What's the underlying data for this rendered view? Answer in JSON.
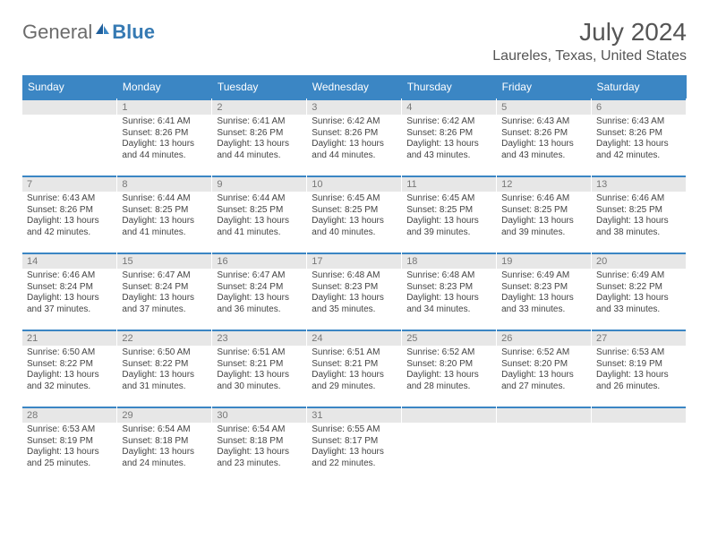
{
  "logo": {
    "part1": "General",
    "part2": "Blue"
  },
  "title": "July 2024",
  "location": "Laureles, Texas, United States",
  "colors": {
    "header_bg": "#3b86c4",
    "header_text": "#ffffff",
    "band_bg": "#e7e7e7",
    "band_border": "#3b86c4",
    "text": "#444444",
    "logo_gray": "#6b6b6b",
    "logo_blue": "#367ab3"
  },
  "weekdays": [
    "Sunday",
    "Monday",
    "Tuesday",
    "Wednesday",
    "Thursday",
    "Friday",
    "Saturday"
  ],
  "weeks": [
    [
      {
        "num": "",
        "sunrise": "",
        "sunset": "",
        "daylight1": "",
        "daylight2": ""
      },
      {
        "num": "1",
        "sunrise": "Sunrise: 6:41 AM",
        "sunset": "Sunset: 8:26 PM",
        "daylight1": "Daylight: 13 hours",
        "daylight2": "and 44 minutes."
      },
      {
        "num": "2",
        "sunrise": "Sunrise: 6:41 AM",
        "sunset": "Sunset: 8:26 PM",
        "daylight1": "Daylight: 13 hours",
        "daylight2": "and 44 minutes."
      },
      {
        "num": "3",
        "sunrise": "Sunrise: 6:42 AM",
        "sunset": "Sunset: 8:26 PM",
        "daylight1": "Daylight: 13 hours",
        "daylight2": "and 44 minutes."
      },
      {
        "num": "4",
        "sunrise": "Sunrise: 6:42 AM",
        "sunset": "Sunset: 8:26 PM",
        "daylight1": "Daylight: 13 hours",
        "daylight2": "and 43 minutes."
      },
      {
        "num": "5",
        "sunrise": "Sunrise: 6:43 AM",
        "sunset": "Sunset: 8:26 PM",
        "daylight1": "Daylight: 13 hours",
        "daylight2": "and 43 minutes."
      },
      {
        "num": "6",
        "sunrise": "Sunrise: 6:43 AM",
        "sunset": "Sunset: 8:26 PM",
        "daylight1": "Daylight: 13 hours",
        "daylight2": "and 42 minutes."
      }
    ],
    [
      {
        "num": "7",
        "sunrise": "Sunrise: 6:43 AM",
        "sunset": "Sunset: 8:26 PM",
        "daylight1": "Daylight: 13 hours",
        "daylight2": "and 42 minutes."
      },
      {
        "num": "8",
        "sunrise": "Sunrise: 6:44 AM",
        "sunset": "Sunset: 8:25 PM",
        "daylight1": "Daylight: 13 hours",
        "daylight2": "and 41 minutes."
      },
      {
        "num": "9",
        "sunrise": "Sunrise: 6:44 AM",
        "sunset": "Sunset: 8:25 PM",
        "daylight1": "Daylight: 13 hours",
        "daylight2": "and 41 minutes."
      },
      {
        "num": "10",
        "sunrise": "Sunrise: 6:45 AM",
        "sunset": "Sunset: 8:25 PM",
        "daylight1": "Daylight: 13 hours",
        "daylight2": "and 40 minutes."
      },
      {
        "num": "11",
        "sunrise": "Sunrise: 6:45 AM",
        "sunset": "Sunset: 8:25 PM",
        "daylight1": "Daylight: 13 hours",
        "daylight2": "and 39 minutes."
      },
      {
        "num": "12",
        "sunrise": "Sunrise: 6:46 AM",
        "sunset": "Sunset: 8:25 PM",
        "daylight1": "Daylight: 13 hours",
        "daylight2": "and 39 minutes."
      },
      {
        "num": "13",
        "sunrise": "Sunrise: 6:46 AM",
        "sunset": "Sunset: 8:25 PM",
        "daylight1": "Daylight: 13 hours",
        "daylight2": "and 38 minutes."
      }
    ],
    [
      {
        "num": "14",
        "sunrise": "Sunrise: 6:46 AM",
        "sunset": "Sunset: 8:24 PM",
        "daylight1": "Daylight: 13 hours",
        "daylight2": "and 37 minutes."
      },
      {
        "num": "15",
        "sunrise": "Sunrise: 6:47 AM",
        "sunset": "Sunset: 8:24 PM",
        "daylight1": "Daylight: 13 hours",
        "daylight2": "and 37 minutes."
      },
      {
        "num": "16",
        "sunrise": "Sunrise: 6:47 AM",
        "sunset": "Sunset: 8:24 PM",
        "daylight1": "Daylight: 13 hours",
        "daylight2": "and 36 minutes."
      },
      {
        "num": "17",
        "sunrise": "Sunrise: 6:48 AM",
        "sunset": "Sunset: 8:23 PM",
        "daylight1": "Daylight: 13 hours",
        "daylight2": "and 35 minutes."
      },
      {
        "num": "18",
        "sunrise": "Sunrise: 6:48 AM",
        "sunset": "Sunset: 8:23 PM",
        "daylight1": "Daylight: 13 hours",
        "daylight2": "and 34 minutes."
      },
      {
        "num": "19",
        "sunrise": "Sunrise: 6:49 AM",
        "sunset": "Sunset: 8:23 PM",
        "daylight1": "Daylight: 13 hours",
        "daylight2": "and 33 minutes."
      },
      {
        "num": "20",
        "sunrise": "Sunrise: 6:49 AM",
        "sunset": "Sunset: 8:22 PM",
        "daylight1": "Daylight: 13 hours",
        "daylight2": "and 33 minutes."
      }
    ],
    [
      {
        "num": "21",
        "sunrise": "Sunrise: 6:50 AM",
        "sunset": "Sunset: 8:22 PM",
        "daylight1": "Daylight: 13 hours",
        "daylight2": "and 32 minutes."
      },
      {
        "num": "22",
        "sunrise": "Sunrise: 6:50 AM",
        "sunset": "Sunset: 8:22 PM",
        "daylight1": "Daylight: 13 hours",
        "daylight2": "and 31 minutes."
      },
      {
        "num": "23",
        "sunrise": "Sunrise: 6:51 AM",
        "sunset": "Sunset: 8:21 PM",
        "daylight1": "Daylight: 13 hours",
        "daylight2": "and 30 minutes."
      },
      {
        "num": "24",
        "sunrise": "Sunrise: 6:51 AM",
        "sunset": "Sunset: 8:21 PM",
        "daylight1": "Daylight: 13 hours",
        "daylight2": "and 29 minutes."
      },
      {
        "num": "25",
        "sunrise": "Sunrise: 6:52 AM",
        "sunset": "Sunset: 8:20 PM",
        "daylight1": "Daylight: 13 hours",
        "daylight2": "and 28 minutes."
      },
      {
        "num": "26",
        "sunrise": "Sunrise: 6:52 AM",
        "sunset": "Sunset: 8:20 PM",
        "daylight1": "Daylight: 13 hours",
        "daylight2": "and 27 minutes."
      },
      {
        "num": "27",
        "sunrise": "Sunrise: 6:53 AM",
        "sunset": "Sunset: 8:19 PM",
        "daylight1": "Daylight: 13 hours",
        "daylight2": "and 26 minutes."
      }
    ],
    [
      {
        "num": "28",
        "sunrise": "Sunrise: 6:53 AM",
        "sunset": "Sunset: 8:19 PM",
        "daylight1": "Daylight: 13 hours",
        "daylight2": "and 25 minutes."
      },
      {
        "num": "29",
        "sunrise": "Sunrise: 6:54 AM",
        "sunset": "Sunset: 8:18 PM",
        "daylight1": "Daylight: 13 hours",
        "daylight2": "and 24 minutes."
      },
      {
        "num": "30",
        "sunrise": "Sunrise: 6:54 AM",
        "sunset": "Sunset: 8:18 PM",
        "daylight1": "Daylight: 13 hours",
        "daylight2": "and 23 minutes."
      },
      {
        "num": "31",
        "sunrise": "Sunrise: 6:55 AM",
        "sunset": "Sunset: 8:17 PM",
        "daylight1": "Daylight: 13 hours",
        "daylight2": "and 22 minutes."
      },
      {
        "num": "",
        "sunrise": "",
        "sunset": "",
        "daylight1": "",
        "daylight2": ""
      },
      {
        "num": "",
        "sunrise": "",
        "sunset": "",
        "daylight1": "",
        "daylight2": ""
      },
      {
        "num": "",
        "sunrise": "",
        "sunset": "",
        "daylight1": "",
        "daylight2": ""
      }
    ]
  ]
}
